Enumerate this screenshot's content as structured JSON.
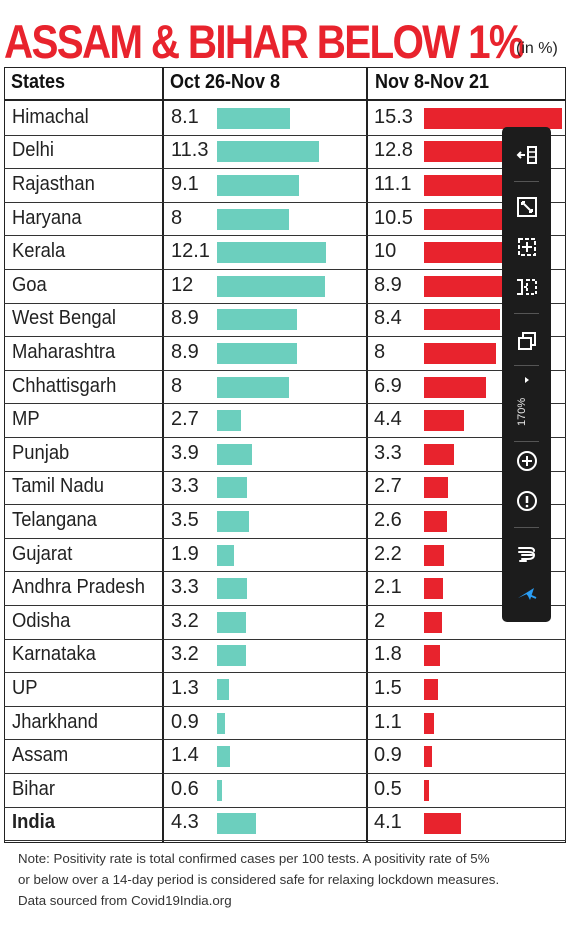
{
  "title": {
    "main": "ASSAM & BIHAR BELOW 1%",
    "unit": "(in %)"
  },
  "columns": {
    "state": "States",
    "period1": "Oct 26-Nov 8",
    "period2": "Nov 8-Nov 21"
  },
  "chart_data": {
    "type": "bar",
    "title": "ASSAM & BIHAR BELOW 1%",
    "unit": "(in %)",
    "categories": [
      "Himachal",
      "Delhi",
      "Rajasthan",
      "Haryana",
      "Kerala",
      "Goa",
      "West Bengal",
      "Maharashtra",
      "Chhattisgarh",
      "MP",
      "Punjab",
      "Tamil Nadu",
      "Telangana",
      "Gujarat",
      "Andhra Pradesh",
      "Odisha",
      "Karnataka",
      "UP",
      "Jharkhand",
      "Assam",
      "Bihar",
      "India"
    ],
    "series": [
      {
        "name": "Oct 26-Nov 8",
        "color": "#6ccfbe",
        "values": [
          8.1,
          11.3,
          9.1,
          8,
          12.1,
          12,
          8.9,
          8.9,
          8,
          2.7,
          3.9,
          3.3,
          3.5,
          1.9,
          3.3,
          3.2,
          3.2,
          1.3,
          0.9,
          1.4,
          0.6,
          4.3
        ],
        "labels": [
          "8.1",
          "11.3",
          "9.1",
          "8",
          "12.1",
          "12",
          "8.9",
          "8.9",
          "8",
          "2.7",
          "3.9",
          "3.3",
          "3.5",
          "1.9",
          "3.3",
          "3.2",
          "3.2",
          "1.3",
          "0.9",
          "1.4",
          "0.6",
          "4.3"
        ]
      },
      {
        "name": "Nov 8-Nov 21",
        "color": "#e8232d",
        "values": [
          15.3,
          12.8,
          11.1,
          10.5,
          10,
          8.9,
          8.4,
          8,
          6.9,
          4.4,
          3.3,
          2.7,
          2.6,
          2.2,
          2.1,
          2,
          1.8,
          1.5,
          1.1,
          0.9,
          0.5,
          4.1
        ],
        "labels": [
          "15.3",
          "12.8",
          "11.1",
          "10.5",
          "10",
          "8.9",
          "8.4",
          "8",
          "6.9",
          "4.4",
          "3.3",
          "2.7",
          "2.6",
          "2.2",
          "2.1",
          "2",
          "1.8",
          "1.5",
          "1.1",
          "0.9",
          "0.5",
          "4.1"
        ]
      }
    ]
  },
  "note": [
    "Note: Positivity rate is total confirmed cases per 100 tests. A positivity rate of 5%",
    "or below over a 14-day period is considered safe for relaxing lockdown measures.",
    "Data sourced from Covid19India.org"
  ],
  "toolbar": {
    "icons": [
      "collapse-panel-icon",
      "fit-page-icon",
      "actual-size-icon",
      "fit-width-icon",
      "copy-icon",
      "expand-arrow-icon",
      "zoom-in-icon",
      "info-icon",
      "hand-tool-icon",
      "select-arrow-icon"
    ],
    "zoom": "170%",
    "accent": "#2a9df4"
  }
}
